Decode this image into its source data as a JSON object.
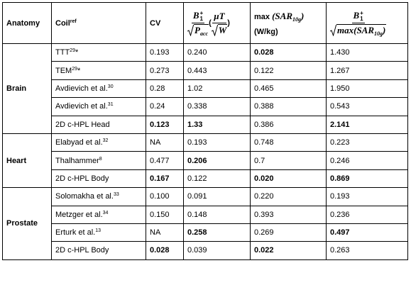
{
  "table": {
    "columns": [
      {
        "label": "Anatomy"
      },
      {
        "label": "Coil",
        "sup": "ref"
      },
      {
        "label": "CV"
      },
      {
        "numerator": "B",
        "numerator_sup": "+",
        "numerator_sub": "1",
        "denominator": "P",
        "denominator_sub": "acc",
        "unit_open": "(",
        "unit_numerator": "μT",
        "unit_denominator": "W",
        "unit_close": ")"
      },
      {
        "label": "max",
        "formula": "(SAR",
        "formula_sub": "10g",
        "formula_end": ")",
        "unit": "(W/kg)"
      },
      {
        "numerator": "B",
        "numerator_sup": "+",
        "numerator_sub": "1",
        "denominator": "max(SAR",
        "denominator_sub": "10g",
        "denominator_end": ")"
      }
    ],
    "groups": [
      {
        "anatomy": "Brain",
        "rows": [
          {
            "coil": "TTT",
            "sup": "29",
            "suffix": "*",
            "values": [
              "0.193",
              "0.240",
              "0.028",
              "1.430"
            ],
            "bold": [
              2
            ]
          },
          {
            "coil": "TEM",
            "sup": "29",
            "suffix": "*",
            "values": [
              "0.273",
              "0.443",
              "0.122",
              "1.267"
            ],
            "bold": []
          },
          {
            "coil": "Avdievich et al.",
            "sup": "30",
            "values": [
              "0.28",
              "1.02",
              "0.465",
              "1.950"
            ],
            "bold": []
          },
          {
            "coil": "Avdievich et al.",
            "sup": "31",
            "values": [
              "0.24",
              "0.338",
              "0.388",
              "0.543"
            ],
            "bold": []
          },
          {
            "coil": "2D c-HPL Head",
            "values": [
              "0.123",
              "1.33",
              "0.386",
              "2.141"
            ],
            "bold": [
              0,
              1,
              3
            ]
          }
        ]
      },
      {
        "anatomy": "Heart",
        "rows": [
          {
            "coil": "Elabyad et al.",
            "sup": "32",
            "values": [
              "NA",
              "0.193",
              "0.748",
              "0.223"
            ],
            "bold": []
          },
          {
            "coil": "Thalhammer",
            "sup": "8",
            "values": [
              "0.477",
              "0.206",
              "0.7",
              "0.246"
            ],
            "bold": [
              1
            ]
          },
          {
            "coil": "2D c-HPL Body",
            "values": [
              "0.167",
              "0.122",
              "0.020",
              "0.869"
            ],
            "bold": [
              0,
              2,
              3
            ]
          }
        ]
      },
      {
        "anatomy": "Prostate",
        "rows": [
          {
            "coil": "Solomakha et al.",
            "sup": "33",
            "values": [
              "0.100",
              "0.091",
              "0.220",
              "0.193"
            ],
            "bold": []
          },
          {
            "coil": "Metzger et al.",
            "sup": "34",
            "values": [
              "0.150",
              "0.148",
              "0.393",
              "0.236"
            ],
            "bold": []
          },
          {
            "coil": "Erturk et al.",
            "sup": "13",
            "values": [
              "NA",
              "0.258",
              "0.269",
              "0.497"
            ],
            "bold": [
              1,
              3
            ]
          },
          {
            "coil": "2D c-HPL Body",
            "values": [
              "0.028",
              "0.039",
              "0.022",
              "0.263"
            ],
            "bold": [
              0,
              2
            ]
          }
        ]
      }
    ]
  }
}
